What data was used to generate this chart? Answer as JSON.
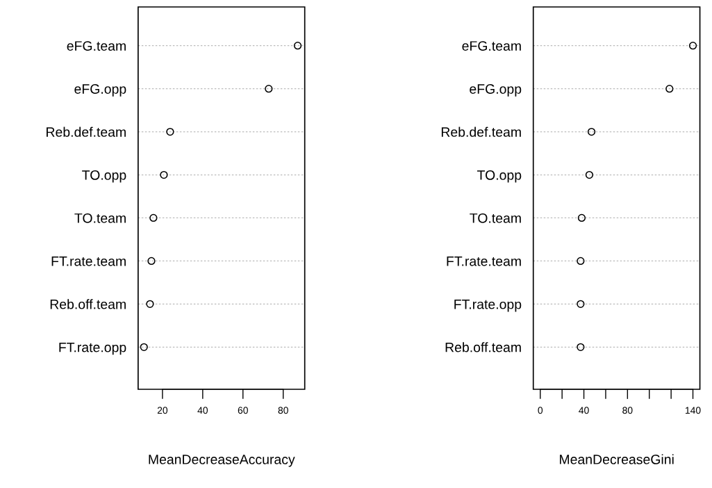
{
  "chart_data": [
    {
      "type": "scatter",
      "orientation": "horizontal",
      "xlabel": "MeanDecreaseAccuracy",
      "categories": [
        "eFG.team",
        "eFG.opp",
        "Reb.def.team",
        "TO.opp",
        "TO.team",
        "FT.rate.team",
        "Reb.off.team",
        "FT.rate.opp"
      ],
      "series": [
        {
          "color": "#000000",
          "values": [
            87.2,
            72.8,
            23.8,
            20.7,
            15.5,
            14.5,
            13.8,
            10.8
          ]
        }
      ],
      "xlim": [
        7.9,
        90.7
      ],
      "xticks": [
        20,
        40,
        60,
        80
      ],
      "grid": "y",
      "marker": "circle"
    },
    {
      "type": "scatter",
      "orientation": "horizontal",
      "xlabel": "MeanDecreaseGini",
      "categories": [
        "eFG.team",
        "eFG.opp",
        "Reb.def.team",
        "TO.opp",
        "TO.team",
        "FT.rate.team",
        "FT.rate.opp",
        "Reb.off.team"
      ],
      "series": [
        {
          "color": "#000000",
          "values": [
            140,
            118.5,
            47,
            45,
            38,
            37,
            37,
            37
          ]
        }
      ],
      "xlim": [
        -6.4,
        146.4
      ],
      "xticks": [
        0,
        {
          "value": 20,
          "label": null
        },
        40,
        {
          "value": 60,
          "label": null
        },
        80,
        {
          "value": 100,
          "label": null
        },
        {
          "value": 120,
          "label": null
        },
        140
      ],
      "grid": "y",
      "marker": "circle"
    }
  ]
}
